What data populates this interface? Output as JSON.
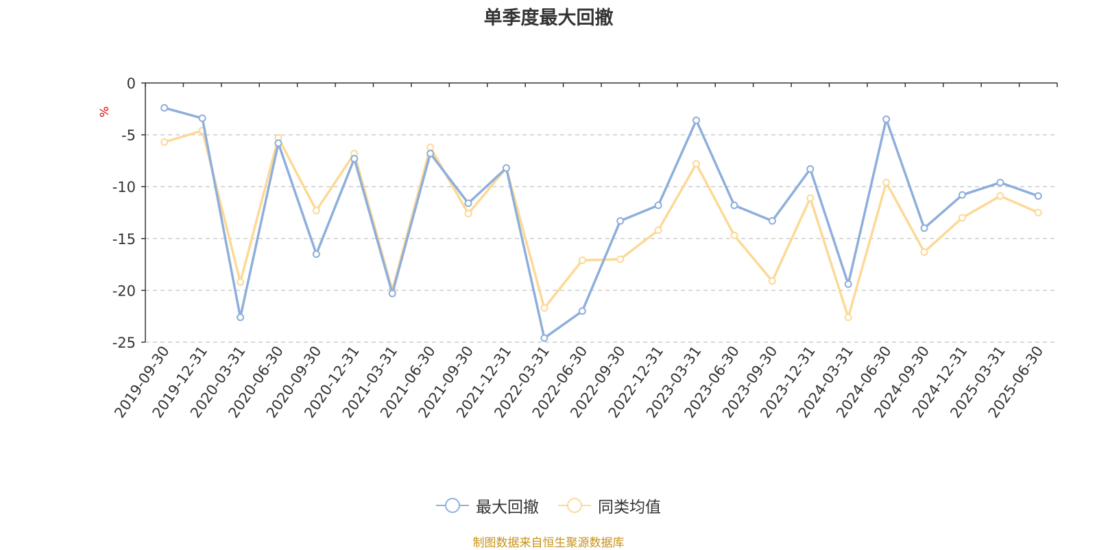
{
  "chart_data": {
    "type": "line",
    "title": "单季度最大回撤",
    "ylabel": "%",
    "ylim": [
      -25,
      0
    ],
    "yticks": [
      0,
      -5,
      -10,
      -15,
      -20,
      -25
    ],
    "categories": [
      "2019-09-30",
      "2019-12-31",
      "2020-03-31",
      "2020-06-30",
      "2020-09-30",
      "2020-12-31",
      "2021-03-31",
      "2021-06-30",
      "2021-09-30",
      "2021-12-31",
      "2022-03-31",
      "2022-06-30",
      "2022-09-30",
      "2022-12-31",
      "2023-03-31",
      "2023-06-30",
      "2023-09-30",
      "2023-12-31",
      "2024-03-31",
      "2024-06-30",
      "2024-09-30",
      "2024-12-31",
      "2025-03-31",
      "2025-06-30"
    ],
    "series": [
      {
        "name": "最大回撤",
        "color": "#8eaedb",
        "values": [
          -2.4,
          -3.4,
          -22.6,
          -5.8,
          -16.5,
          -7.3,
          -20.3,
          -6.8,
          -11.6,
          -8.2,
          -24.6,
          -22.0,
          -13.3,
          -11.8,
          -3.6,
          -11.8,
          -13.3,
          -8.3,
          -19.4,
          -3.5,
          -14.0,
          -10.8,
          -9.6,
          -10.9
        ]
      },
      {
        "name": "同类均值",
        "color": "#fcd996",
        "values": [
          -5.7,
          -4.6,
          -19.2,
          -5.3,
          -12.3,
          -6.8,
          -20.0,
          -6.2,
          -12.6,
          -8.2,
          -21.7,
          -17.1,
          -17.0,
          -14.2,
          -7.8,
          -14.7,
          -19.1,
          -11.1,
          -22.6,
          -9.6,
          -16.3,
          -13.0,
          -10.9,
          -12.5
        ]
      }
    ],
    "grid": true,
    "legend_position": "bottom-center"
  },
  "legend": {
    "items": [
      {
        "label": "最大回撤",
        "color": "#8eaedb"
      },
      {
        "label": "同类均值",
        "color": "#fcd996"
      }
    ]
  },
  "source_note": "制图数据来自恒生聚源数据库"
}
